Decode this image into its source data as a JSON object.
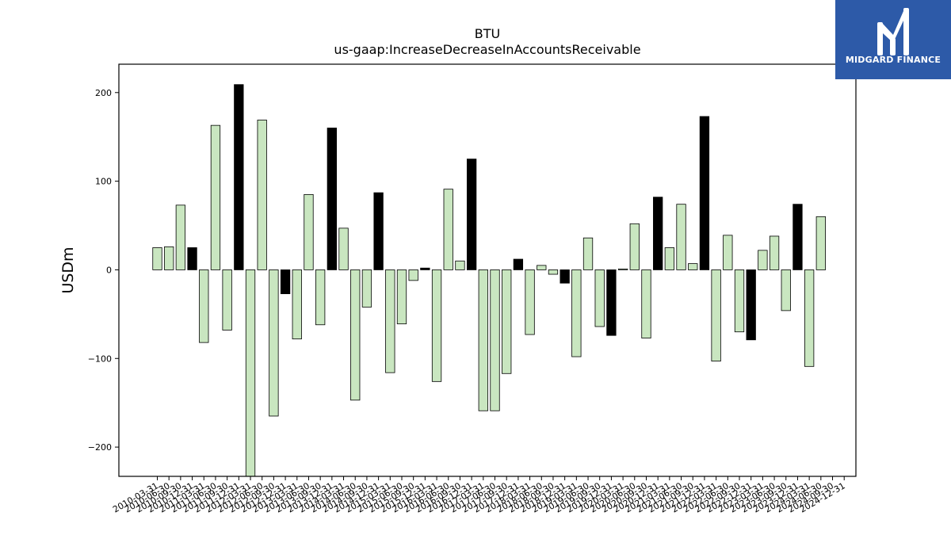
{
  "logo": {
    "text": "MIDGARD FINANCE"
  },
  "colors": {
    "q4": "#000000",
    "other": "#c9e6c0",
    "edge": "#000000"
  },
  "chart_data": {
    "type": "bar",
    "title": "BTU",
    "subtitle": "us-gaap:IncreaseDecreaseInAccountsReceivable",
    "xlabel": "",
    "ylabel": "USDm",
    "ylim": [
      -233,
      232
    ],
    "yticks": [
      -200,
      -100,
      0,
      100,
      200
    ],
    "ytick_labels": [
      "−200",
      "−100",
      "0",
      "100",
      "200"
    ],
    "grid": false,
    "categories": [
      "2010-03-31",
      "2010-06-30",
      "2010-09-30",
      "2010-12-31",
      "2011-03-31",
      "2011-06-30",
      "2011-09-30",
      "2011-12-31",
      "2012-03-31",
      "2012-06-30",
      "2012-09-30",
      "2012-12-31",
      "2013-03-31",
      "2013-06-30",
      "2013-09-30",
      "2013-12-31",
      "2014-03-31",
      "2014-06-30",
      "2014-09-30",
      "2014-12-31",
      "2015-03-31",
      "2015-06-30",
      "2015-09-30",
      "2015-12-31",
      "2016-03-31",
      "2016-06-30",
      "2016-09-30",
      "2016-12-31",
      "2017-03-31",
      "2017-06-30",
      "2017-09-30",
      "2017-12-31",
      "2018-03-31",
      "2018-06-30",
      "2018-09-30",
      "2018-12-31",
      "2019-03-31",
      "2019-06-30",
      "2019-09-30",
      "2019-12-31",
      "2020-03-31",
      "2020-06-30",
      "2020-09-30",
      "2020-12-31",
      "2021-03-31",
      "2021-06-30",
      "2021-09-30",
      "2021-12-31",
      "2022-03-31",
      "2022-06-30",
      "2022-09-30",
      "2022-12-31",
      "2023-03-31",
      "2023-06-30",
      "2023-09-30",
      "2023-12-31",
      "2024-03-31",
      "2024-06-30",
      "2024-09-30",
      "2024-12-31"
    ],
    "tick_labels": [
      "2010-03-31",
      "2010-06-30",
      "2010-09-30",
      "2010-12-31",
      "2011-03-31",
      "2011-06-30",
      "2011-09-30",
      "2011-12-31",
      "2012-03-31",
      "2012-06-30",
      "2012-09-30",
      "2012-12-31",
      "2013-03-31",
      "2013-06-30",
      "2013-09-30",
      "2013-12-31",
      "2014-03-31",
      "2014-06-30",
      "2014-09-30",
      "2014-12-31",
      "2015-03-31",
      "2015-06-30",
      "2015-09-30",
      "2015-12-31",
      "2016-03-31",
      "2016-06-30",
      "2016-09-30",
      "2016-12-31",
      "2017-03-31",
      "2017-06-30",
      "2017-09-30",
      "2017-12-31",
      "2018-03-31",
      "2018-06-30",
      "2018-09-30",
      "2018-12-31",
      "2019-03-31",
      "2019-06-30",
      "2019-09-30",
      "2019-12-31",
      "2020-03-31",
      "2020-06-30",
      "2020-09-30",
      "2020-12-31",
      "2021-03-31",
      "2021-06-30",
      "2021-09-30",
      "2021-12-31",
      "2022-03-31",
      "2022-06-30",
      "2022-09-30",
      "2022-12-31",
      "2023-03-31",
      "2023-06-30",
      "2023-09-30",
      "2023-12-31",
      "2024-03-31",
      "2024-06-30",
      "2024-09-30",
      "2024-12-31"
    ],
    "values": [
      25,
      26,
      73,
      25,
      -82,
      163,
      -68,
      209,
      -234,
      169,
      -165,
      -27,
      -78,
      85,
      -62,
      160,
      47,
      -147,
      -42,
      87,
      -116,
      -61,
      -12,
      2,
      -126,
      91,
      10,
      125,
      -159,
      -159,
      -117,
      12,
      -73,
      5,
      -5,
      -15,
      -98,
      36,
      -64,
      -74,
      1,
      52,
      -77,
      82,
      25,
      74,
      7,
      173,
      -103,
      39,
      -70,
      -79,
      22,
      38,
      -46,
      74,
      -109,
      60,
      0,
      0
    ],
    "q4_flags": [
      false,
      false,
      false,
      true,
      false,
      false,
      false,
      true,
      false,
      false,
      false,
      true,
      false,
      false,
      false,
      true,
      false,
      false,
      false,
      true,
      false,
      false,
      false,
      true,
      false,
      false,
      false,
      true,
      false,
      false,
      false,
      true,
      false,
      false,
      false,
      true,
      false,
      false,
      false,
      true,
      false,
      false,
      false,
      true,
      false,
      false,
      false,
      true,
      false,
      false,
      false,
      true,
      false,
      false,
      false,
      true,
      false,
      false,
      false,
      true
    ]
  }
}
